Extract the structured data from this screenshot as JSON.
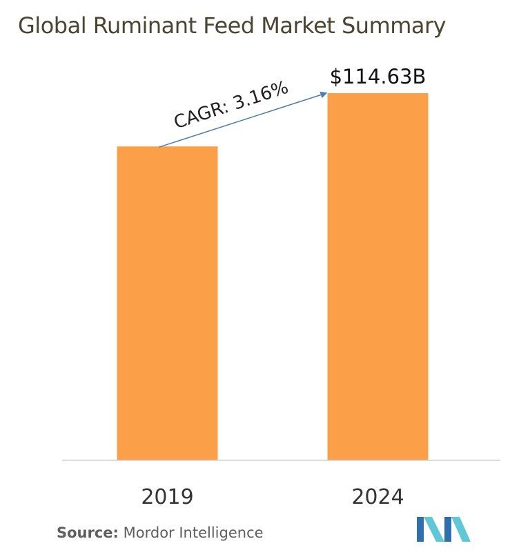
{
  "chart_data": {
    "type": "bar",
    "title": "Global Ruminant Feed Market Summary",
    "categories": [
      "2019",
      "2024"
    ],
    "values": [
      98.0,
      114.63
    ],
    "value_labels": [
      "",
      "$114.63B"
    ],
    "annotation": "CAGR: 3.16%",
    "ylim": [
      0,
      114.63
    ],
    "xlabel": "",
    "ylabel": "",
    "grid": false,
    "legend": "none",
    "colors": {
      "bar": "#fba049",
      "arrow": "#4a7ab8",
      "axis": "#d0d0d0"
    }
  },
  "source": {
    "label": "Source:",
    "text": "Mordor Intelligence"
  },
  "logo": {
    "colors": [
      "#2f6fae",
      "#5fc7d6"
    ]
  }
}
